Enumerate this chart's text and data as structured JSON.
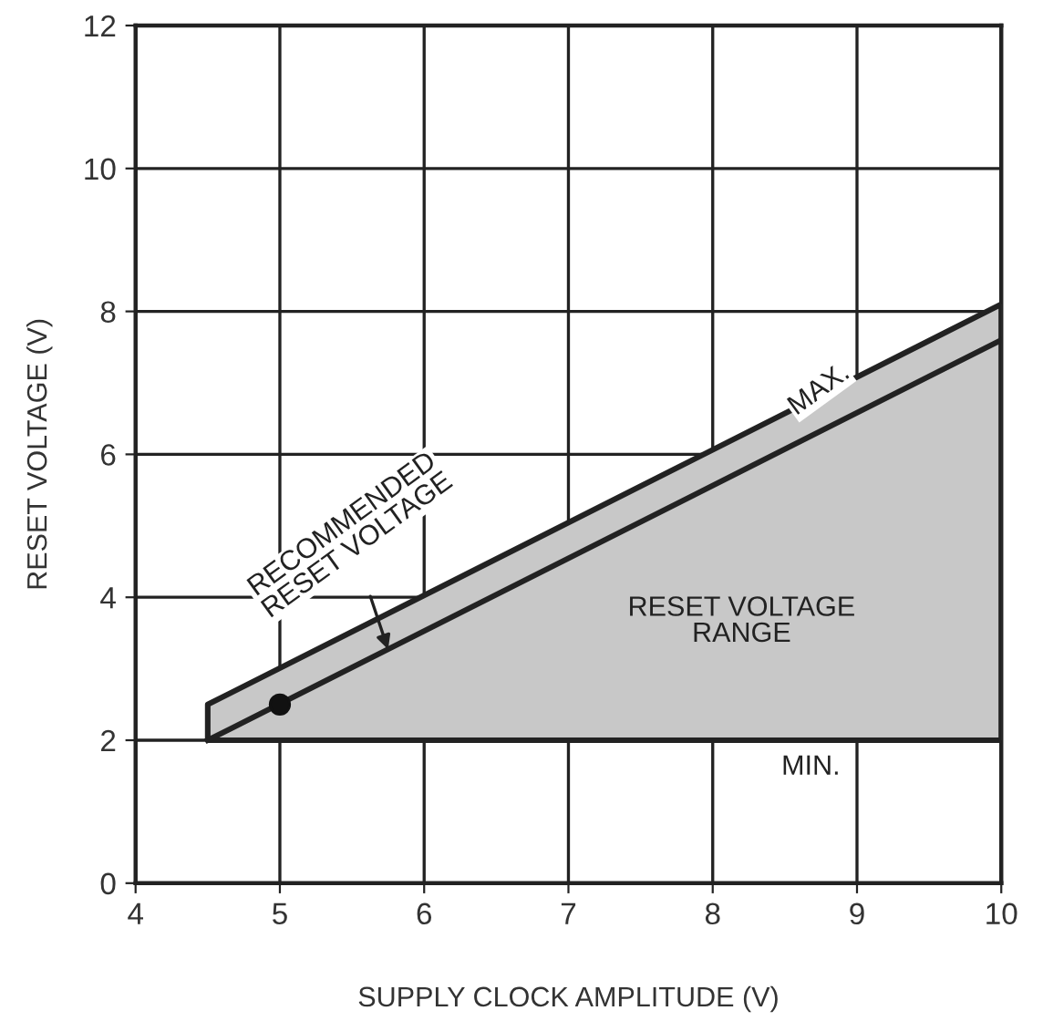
{
  "chart_data": {
    "type": "line",
    "xlabel": "SUPPLY CLOCK AMPLITUDE (V)",
    "ylabel": "RESET VOLTAGE (V)",
    "xlim": [
      4,
      10
    ],
    "ylim": [
      0,
      12
    ],
    "xticks": [
      4,
      5,
      6,
      7,
      8,
      9,
      10
    ],
    "yticks": [
      0,
      2,
      4,
      6,
      8,
      10,
      12
    ],
    "grid": true,
    "marker": "none",
    "line_style": "solid",
    "series": [
      {
        "color": "#222222",
        "x": [
          4.5,
          10
        ],
        "values": [
          2.0,
          7.6
        ],
        "lower": [
          2,
          2
        ],
        "upper": [
          2.5,
          8.1
        ]
      },
      {
        "type": "scatter",
        "color": "#111111",
        "x": [
          5
        ],
        "values": [
          2.5
        ],
        "marker": "circle"
      }
    ],
    "annotations": [
      "MAX.",
      {
        "text": "RECOMMENDED\nRESET VOLTAGE",
        "x": 5.75,
        "y": 3.27
      },
      "RESET VOLTAGE\nRANGE",
      "MIN."
    ]
  }
}
